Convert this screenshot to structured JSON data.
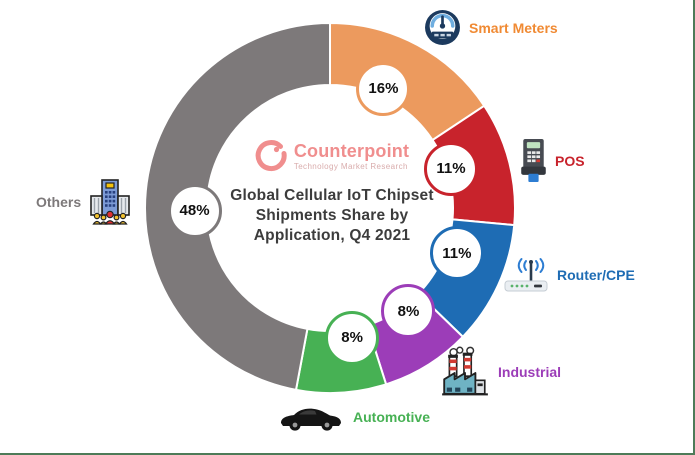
{
  "frame": {
    "border_color": "#4E7B58",
    "background": "#FFFFFF"
  },
  "logo": {
    "brand": "Counterpoint",
    "tagline": "Technology Market Research",
    "brand_color": "#F08E8E",
    "tagline_color": "#D9ACAC"
  },
  "title": {
    "color": "#3C3C3C",
    "lines": [
      "Global Cellular IoT Chipset",
      "Shipments Share by",
      "Application, Q4 2021"
    ]
  },
  "chart_data": {
    "type": "pie",
    "subtype": "donut",
    "title": "Global Cellular IoT Chipset Shipments Share by Application, Q4 2021",
    "unit": "%",
    "start_angle_deg": 0,
    "direction": "clockwise",
    "legend_position": "around",
    "segments": [
      {
        "label": "Smart Meters",
        "value": 16,
        "value_label": "16%",
        "color": "#EC9A5E",
        "text_color": "#F08A33",
        "icon": "smart-meter-icon"
      },
      {
        "label": "POS",
        "value": 11,
        "value_label": "11%",
        "color": "#C8232C",
        "text_color": "#C8232C",
        "icon": "pos-terminal-icon"
      },
      {
        "label": "Router/CPE",
        "value": 11,
        "value_label": "11%",
        "color": "#1E6CB4",
        "text_color": "#1E6CB4",
        "icon": "router-icon"
      },
      {
        "label": "Industrial",
        "value": 8,
        "value_label": "8%",
        "color": "#9C3DB8",
        "text_color": "#9C3DB8",
        "icon": "factory-icon"
      },
      {
        "label": "Automotive",
        "value": 8,
        "value_label": "8%",
        "color": "#47B154",
        "text_color": "#47B154",
        "icon": "car-icon"
      },
      {
        "label": "Others",
        "value": 48,
        "value_label": "48%",
        "color": "#7D797A",
        "text_color": "#7D797A",
        "icon": "building-people-icon"
      }
    ]
  }
}
